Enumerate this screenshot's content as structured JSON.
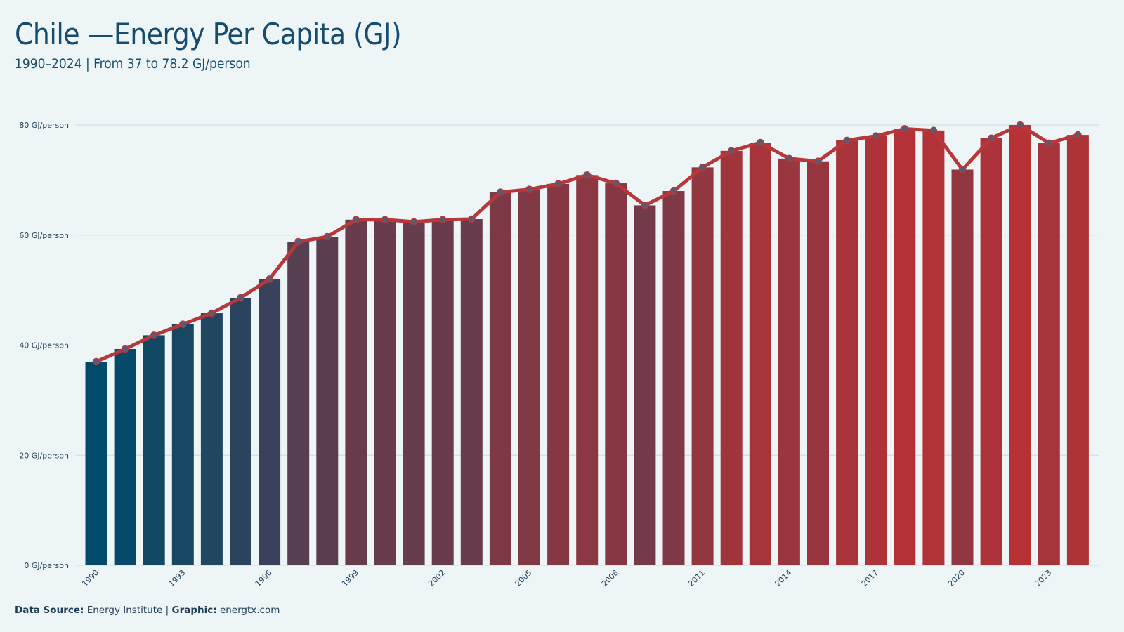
{
  "header": {
    "title": "Chile —Energy Per Capita (GJ)",
    "subtitle": "1990–2024 | From 37 to 78.2 GJ/person"
  },
  "footer": {
    "source_label": "Data Source:",
    "source_value": "Energy Institute",
    "separator": "|",
    "graphic_label": "Graphic:",
    "graphic_value": "energtx.com"
  },
  "colors": {
    "start": "#004a6a",
    "end": "#b63236",
    "line": "#b8373a",
    "marker": "#5b5a72",
    "grid": "#c9d9de",
    "background": "#eef5f6"
  },
  "chart_data": {
    "type": "bar",
    "title": "Chile —Energy Per Capita (GJ)",
    "subtitle": "1990–2024 | From 37 to 78.2 GJ/person",
    "xlabel": "",
    "ylabel": "",
    "unit": "GJ/person",
    "ylim": [
      0,
      80
    ],
    "yticks": [
      0,
      20,
      40,
      60,
      80
    ],
    "ytick_labels": [
      "0 GJ/person",
      "20 GJ/person",
      "40 GJ/person",
      "60 GJ/person",
      "80 GJ/person"
    ],
    "xtick_labels": [
      "1990",
      "1993",
      "1996",
      "1999",
      "2002",
      "2005",
      "2008",
      "2011",
      "2014",
      "2017",
      "2020",
      "2023"
    ],
    "grid": true,
    "overlay": "line with markers",
    "categories": [
      "1990",
      "1991",
      "1992",
      "1993",
      "1994",
      "1995",
      "1996",
      "1997",
      "1998",
      "1999",
      "2000",
      "2001",
      "2002",
      "2003",
      "2004",
      "2005",
      "2006",
      "2007",
      "2008",
      "2009",
      "2010",
      "2011",
      "2012",
      "2013",
      "2014",
      "2015",
      "2016",
      "2017",
      "2018",
      "2019",
      "2020",
      "2021",
      "2022",
      "2023",
      "2024"
    ],
    "values": [
      37.0,
      39.3,
      41.8,
      43.8,
      45.8,
      48.6,
      52.0,
      58.8,
      59.7,
      62.8,
      62.8,
      62.4,
      62.8,
      62.9,
      67.8,
      68.3,
      69.3,
      70.9,
      69.4,
      65.4,
      68.0,
      72.3,
      75.3,
      76.8,
      73.9,
      73.4,
      77.2,
      78.0,
      79.3,
      79.0,
      71.9,
      77.6,
      80.0,
      76.7,
      78.2
    ]
  }
}
